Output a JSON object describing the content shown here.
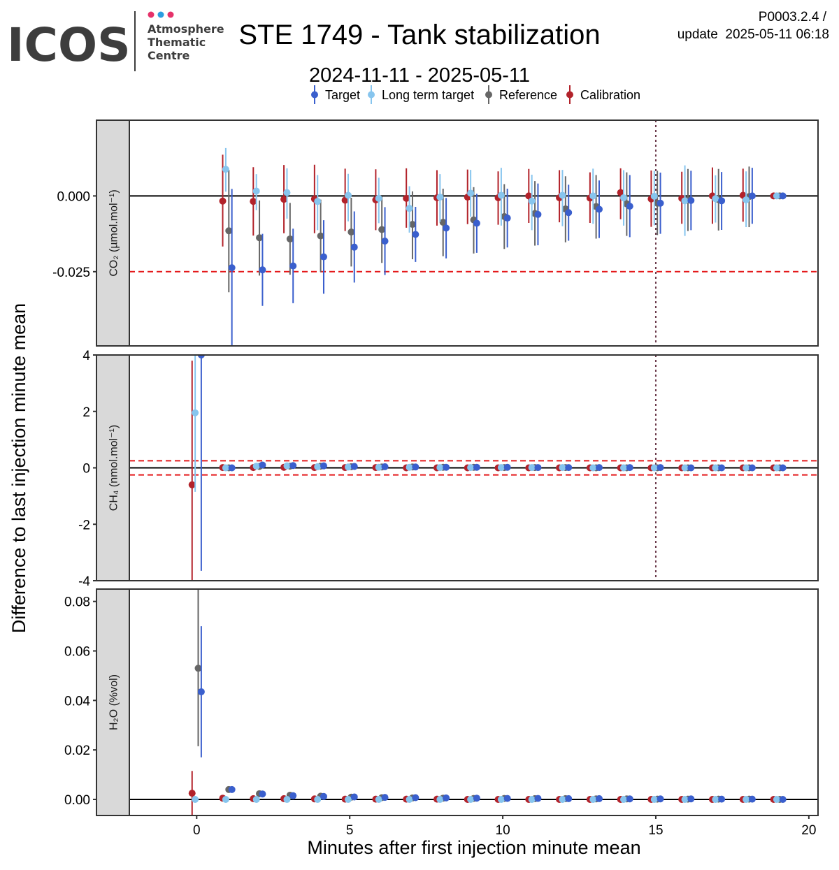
{
  "logo": {
    "wordmark": "ICOS",
    "line1": "Atmosphere",
    "line2": "Thematic",
    "line3": "Centre",
    "dot_colors": [
      "#e5326a",
      "#2a9de0",
      "#e5326a"
    ]
  },
  "header": {
    "title": "STE 1749 - Tank stabilization",
    "subtitle": "2024-11-11 - 2025-05-11",
    "version": "P0003.2.4 /",
    "update": "update  2025-05-11 06:18"
  },
  "chart_data": {
    "type": "scatter",
    "xlabel": "Minutes after first injection minute mean",
    "ylabel": "Difference to last injection minute mean",
    "xlim": [
      -2.2,
      20.3
    ],
    "xticks": [
      0,
      5,
      10,
      15,
      20
    ],
    "x_tick_labels": [
      "0",
      "5",
      "10",
      "15",
      "20"
    ],
    "legend_position": "top",
    "dodge_offsets": [
      0.15,
      -0.05,
      0.05,
      -0.15
    ],
    "series": [
      {
        "name": "Target",
        "color": "#3a5fcd"
      },
      {
        "name": "Long term target",
        "color": "#87c5ee"
      },
      {
        "name": "Reference",
        "color": "#666666"
      },
      {
        "name": "Calibration",
        "color": "#b2222a"
      }
    ],
    "vline_x": 15,
    "panels": [
      {
        "strip": "CO₂ (µmol.mol⁻¹)",
        "ylim": [
          -0.0495,
          0.025
        ],
        "yticks": [
          0.0,
          -0.025
        ],
        "y_tick_labels": [
          "0.000",
          "-0.025"
        ],
        "threshold": 0.025,
        "x": [
          1,
          2,
          3,
          4,
          5,
          6,
          7,
          8,
          9,
          10,
          11,
          12,
          13,
          14,
          15,
          16,
          17,
          18,
          19
        ],
        "values": [
          [
            -0.0237,
            -0.0244,
            -0.0231,
            -0.0201,
            -0.0169,
            -0.0149,
            -0.0127,
            -0.0106,
            -0.009,
            -0.0073,
            -0.0061,
            -0.0055,
            -0.0044,
            -0.0034,
            -0.0024,
            -0.0015,
            -0.0016,
            0.0,
            0.0
          ],
          [
            0.0088,
            0.0016,
            0.0011,
            -0.0018,
            0.0002,
            -0.0008,
            -0.0041,
            -0.0004,
            0.0009,
            0.0002,
            -0.0017,
            0.0002,
            0.0,
            -0.0006,
            -0.0001,
            -0.0016,
            -0.0009,
            -0.0013,
            0.0
          ],
          [
            -0.0115,
            -0.0138,
            -0.0142,
            -0.0132,
            -0.0119,
            -0.0111,
            -0.0094,
            -0.0087,
            -0.0079,
            -0.0068,
            -0.0058,
            -0.0043,
            -0.0035,
            -0.0026,
            -0.0024,
            -0.0012,
            -0.0012,
            -0.0002,
            0.0
          ],
          [
            -0.0017,
            -0.0018,
            -0.0011,
            -0.001,
            -0.0014,
            -0.0013,
            -0.0008,
            -0.0006,
            -0.0004,
            -0.0006,
            0.0,
            -0.0006,
            -0.0007,
            0.0011,
            -0.001,
            -0.0008,
            0.0,
            0.0002,
            0.0
          ]
        ],
        "lower": [
          [
            -0.0495,
            -0.0363,
            -0.0354,
            -0.0323,
            -0.0286,
            -0.0261,
            -0.0218,
            -0.0206,
            -0.0188,
            -0.017,
            -0.0163,
            -0.0148,
            -0.0139,
            -0.0136,
            -0.0125,
            -0.0113,
            -0.0112,
            -0.0092,
            -0.0002
          ],
          [
            0.0014,
            -0.0047,
            -0.0075,
            -0.0113,
            -0.0084,
            -0.009,
            -0.0121,
            -0.0086,
            -0.0069,
            -0.0098,
            -0.0113,
            -0.01,
            -0.0092,
            -0.0098,
            -0.0097,
            -0.0132,
            -0.0088,
            -0.0103,
            -0.0002
          ],
          [
            -0.0318,
            -0.0263,
            -0.026,
            -0.0251,
            -0.0233,
            -0.0221,
            -0.0209,
            -0.0199,
            -0.019,
            -0.0175,
            -0.0164,
            -0.0153,
            -0.0141,
            -0.0132,
            -0.0129,
            -0.0116,
            -0.0114,
            -0.0103,
            -0.0002
          ],
          [
            -0.0167,
            -0.0131,
            -0.0123,
            -0.0123,
            -0.0116,
            -0.0113,
            -0.0105,
            -0.0098,
            -0.0093,
            -0.0095,
            -0.0089,
            -0.0087,
            -0.0089,
            -0.0077,
            -0.0102,
            -0.0092,
            -0.0092,
            -0.0085,
            -0.0002
          ]
        ],
        "upper": [
          [
            0.0023,
            -0.0125,
            -0.0108,
            -0.008,
            -0.0051,
            -0.0037,
            -0.0036,
            -0.0007,
            0.0007,
            0.0024,
            0.0041,
            0.0037,
            0.0051,
            0.0069,
            0.0077,
            0.0083,
            0.0079,
            0.0093,
            0.0002
          ],
          [
            0.0158,
            0.0072,
            0.0091,
            0.0069,
            0.0073,
            0.006,
            0.0032,
            0.0072,
            0.0086,
            0.0093,
            0.007,
            0.0086,
            0.009,
            0.0085,
            0.0083,
            0.0101,
            0.0068,
            0.0081,
            0.0002
          ],
          [
            0.0086,
            -0.0015,
            -0.0023,
            -0.0012,
            -0.0006,
            -0.0002,
            0.0015,
            0.0024,
            0.0029,
            0.0039,
            0.0049,
            0.0065,
            0.0069,
            0.0078,
            0.0083,
            0.0089,
            0.0089,
            0.0097,
            0.0002
          ],
          [
            0.0136,
            0.0095,
            0.0102,
            0.0103,
            0.009,
            0.0088,
            0.0091,
            0.0085,
            0.0087,
            0.0081,
            0.0089,
            0.0085,
            0.0078,
            0.0091,
            0.0084,
            0.008,
            0.0094,
            0.009,
            0.0002
          ]
        ]
      },
      {
        "strip": "CH₄ (nmol.mol⁻¹)",
        "ylim": [
          -4,
          4
        ],
        "yticks": [
          4,
          2,
          0,
          -2,
          -4
        ],
        "y_tick_labels": [
          "4",
          "2",
          "0",
          "-2",
          "-4"
        ],
        "threshold": 0.25,
        "x": [
          0,
          1,
          2,
          3,
          4,
          5,
          6,
          7,
          8,
          9,
          10,
          11,
          12,
          13,
          14,
          15,
          16,
          17,
          18,
          19
        ],
        "values": [
          [
            4.0,
            0.0,
            0.1,
            0.08,
            0.07,
            0.05,
            0.04,
            0.03,
            0.02,
            0.02,
            0.02,
            0.01,
            0.01,
            0.01,
            0.01,
            0.01,
            0.0,
            0.0,
            0.0,
            0.0
          ],
          [
            1.95,
            0.0,
            0.06,
            0.07,
            0.04,
            0.03,
            0.02,
            0.02,
            0.01,
            0.01,
            0.01,
            0.01,
            0.01,
            0.0,
            0.0,
            0.0,
            0.0,
            0.0,
            0.0,
            0.0
          ],
          [
            null,
            0.0,
            0.05,
            0.06,
            0.06,
            0.04,
            0.03,
            0.03,
            0.02,
            0.02,
            0.01,
            0.01,
            0.01,
            0.0,
            0.0,
            0.0,
            0.0,
            0.0,
            0.0,
            0.0
          ],
          [
            -0.6,
            0.01,
            0.01,
            0.02,
            0.01,
            0.01,
            0.01,
            0.0,
            0.0,
            0.0,
            0.0,
            0.0,
            0.0,
            0.0,
            0.0,
            0.0,
            0.0,
            0.0,
            0.0,
            0.0
          ]
        ],
        "lower": [
          [
            -3.65,
            -0.05,
            0.05,
            0.03,
            0.02,
            0.0,
            0.0,
            -0.02,
            -0.03,
            -0.03,
            -0.03,
            -0.04,
            -0.04,
            -0.04,
            -0.04,
            -0.04,
            -0.04,
            -0.04,
            -0.04,
            -0.02
          ],
          [
            -0.85,
            -0.05,
            0.0,
            0.02,
            -0.01,
            -0.02,
            -0.03,
            -0.03,
            -0.04,
            -0.04,
            -0.04,
            -0.04,
            -0.04,
            -0.04,
            -0.04,
            -0.04,
            -0.04,
            -0.04,
            -0.04,
            -0.02
          ],
          [
            null,
            -0.05,
            0.0,
            0.01,
            0.01,
            -0.01,
            -0.02,
            -0.02,
            -0.03,
            -0.03,
            -0.04,
            -0.04,
            -0.04,
            -0.04,
            -0.04,
            -0.04,
            -0.04,
            -0.04,
            -0.04,
            -0.02
          ],
          [
            -4.0,
            -0.04,
            -0.04,
            -0.03,
            -0.04,
            -0.04,
            -0.04,
            -0.04,
            -0.04,
            -0.04,
            -0.04,
            -0.04,
            -0.04,
            -0.04,
            -0.04,
            -0.04,
            -0.04,
            -0.04,
            -0.04,
            -0.02
          ]
        ],
        "upper": [
          [
            4.0,
            0.05,
            0.15,
            0.13,
            0.12,
            0.1,
            0.08,
            0.08,
            0.07,
            0.07,
            0.07,
            0.06,
            0.06,
            0.06,
            0.06,
            0.06,
            0.04,
            0.04,
            0.04,
            0.02
          ],
          [
            4.0,
            0.05,
            0.12,
            0.12,
            0.09,
            0.08,
            0.07,
            0.07,
            0.06,
            0.06,
            0.06,
            0.06,
            0.06,
            0.04,
            0.04,
            0.04,
            0.04,
            0.04,
            0.04,
            0.02
          ],
          [
            null,
            0.05,
            0.1,
            0.11,
            0.11,
            0.09,
            0.08,
            0.08,
            0.07,
            0.07,
            0.06,
            0.06,
            0.06,
            0.04,
            0.04,
            0.04,
            0.04,
            0.04,
            0.04,
            0.02
          ],
          [
            3.8,
            0.06,
            0.06,
            0.07,
            0.06,
            0.06,
            0.06,
            0.04,
            0.04,
            0.04,
            0.04,
            0.04,
            0.04,
            0.04,
            0.04,
            0.04,
            0.04,
            0.04,
            0.04,
            0.02
          ]
        ]
      },
      {
        "strip": "H₂O (%vol)",
        "ylim": [
          -0.0065,
          0.085
        ],
        "yticks": [
          0.08,
          0.06,
          0.04,
          0.02,
          0.0
        ],
        "y_tick_labels": [
          "0.08",
          "0.06",
          "0.04",
          "0.02",
          "0.00"
        ],
        "threshold": null,
        "x": [
          0,
          1,
          2,
          3,
          4,
          5,
          6,
          7,
          8,
          9,
          10,
          11,
          12,
          13,
          14,
          15,
          16,
          17,
          18,
          19
        ],
        "values": [
          [
            0.0435,
            0.004,
            0.0022,
            0.0015,
            0.0012,
            0.001,
            0.0008,
            0.0007,
            0.0006,
            0.0005,
            0.0004,
            0.0004,
            0.0003,
            0.0003,
            0.0002,
            0.0002,
            0.0002,
            0.0001,
            0.0001,
            0.0
          ],
          [
            0.0,
            0.0,
            0.0,
            0.0,
            0.0,
            0.0,
            0.0,
            0.0,
            0.0,
            0.0,
            0.0,
            0.0,
            0.0,
            0.0,
            0.0,
            0.0,
            0.0,
            0.0,
            0.0,
            0.0
          ],
          [
            0.053,
            0.004,
            0.0023,
            0.0017,
            0.0013,
            0.0009,
            0.0007,
            0.0006,
            0.0005,
            0.0004,
            0.0004,
            0.0003,
            0.0003,
            0.0002,
            0.0002,
            0.0001,
            0.0001,
            0.0001,
            0.0001,
            0.0
          ],
          [
            0.0025,
            0.0005,
            0.0003,
            0.0003,
            0.0002,
            0.0001,
            0.0001,
            0.0001,
            0.0001,
            0.0,
            0.0,
            0.0,
            0.0,
            0.0,
            0.0,
            0.0,
            0.0,
            0.0,
            0.0,
            0.0
          ]
        ],
        "lower": [
          [
            0.017,
            0.0035,
            0.0018,
            0.0012,
            0.0009,
            0.0007,
            0.0005,
            0.0004,
            0.0003,
            0.0002,
            0.0002,
            0.0002,
            0.0001,
            0.0001,
            0.0,
            0.0,
            0.0,
            0.0,
            0.0,
            0.0
          ],
          [
            -0.0005,
            -0.0005,
            -0.0005,
            -0.0005,
            -0.0005,
            -0.0005,
            -0.0005,
            -0.0005,
            -0.0005,
            -0.0005,
            -0.0005,
            -0.0005,
            -0.0005,
            -0.0005,
            -0.0005,
            -0.0005,
            -0.0005,
            -0.0005,
            -0.0005,
            -0.0002
          ],
          [
            0.0215,
            0.0035,
            0.0019,
            0.0013,
            0.001,
            0.0006,
            0.0004,
            0.0003,
            0.0003,
            0.0002,
            0.0002,
            0.0001,
            0.0001,
            0.0,
            0.0,
            0.0,
            0.0,
            0.0,
            0.0,
            0.0
          ],
          [
            -0.0065,
            -0.0002,
            -0.0002,
            -0.0001,
            -0.0001,
            -0.0001,
            -0.0001,
            -0.0001,
            -0.0001,
            -0.0001,
            -0.0001,
            -0.0001,
            -0.0001,
            -0.0001,
            -0.0001,
            -0.0001,
            -0.0001,
            -0.0001,
            -0.0001,
            -0.0001
          ]
        ],
        "upper": [
          [
            0.07,
            0.0045,
            0.0026,
            0.0018,
            0.0015,
            0.0013,
            0.0011,
            0.001,
            0.0009,
            0.0008,
            0.0006,
            0.0006,
            0.0005,
            0.0005,
            0.0004,
            0.0004,
            0.0004,
            0.0002,
            0.0002,
            0.0001
          ],
          [
            0.0005,
            0.0005,
            0.0005,
            0.0005,
            0.0005,
            0.0005,
            0.0005,
            0.0005,
            0.0005,
            0.0005,
            0.0005,
            0.0005,
            0.0005,
            0.0005,
            0.0005,
            0.0005,
            0.0005,
            0.0005,
            0.0005,
            0.0002
          ],
          [
            0.085,
            0.0045,
            0.0027,
            0.0021,
            0.0016,
            0.0012,
            0.001,
            0.0009,
            0.0007,
            0.0006,
            0.0006,
            0.0005,
            0.0005,
            0.0004,
            0.0004,
            0.0002,
            0.0002,
            0.0002,
            0.0002,
            0.0001
          ],
          [
            0.0115,
            0.0012,
            0.0008,
            0.0007,
            0.0005,
            0.0003,
            0.0003,
            0.0003,
            0.0003,
            0.0001,
            0.0001,
            0.0001,
            0.0001,
            0.0001,
            0.0001,
            0.0001,
            0.0001,
            0.0001,
            0.0001,
            0.0001
          ]
        ]
      }
    ]
  }
}
